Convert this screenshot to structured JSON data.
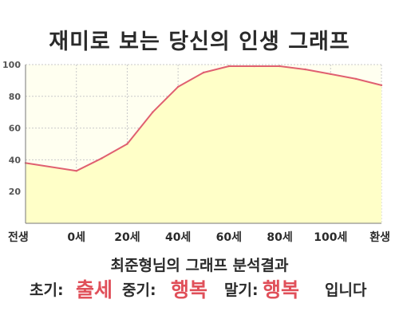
{
  "title": "재미로 보는 당신의 인생 그래프",
  "subtitle": "최준형님의 그래프 분석결과",
  "result": {
    "early_label": "초기:",
    "early_value": "출세",
    "middle_label": "중기:",
    "middle_value": "행복",
    "late_label": "말기:",
    "late_value": "행복",
    "ending": "입니다"
  },
  "colors": {
    "line": "#e06070",
    "fill": "#ffffc8",
    "plot_bg": "#fffff0",
    "accent_text": "#e0505a"
  },
  "chart_data": {
    "type": "area",
    "title": "재미로 보는 당신의 인생 그래프",
    "xlabel": "",
    "ylabel": "",
    "x_ticks": [
      "전생",
      "0세",
      "20세",
      "40세",
      "60세",
      "80세",
      "100세",
      "환생"
    ],
    "y_ticks": [
      20,
      40,
      60,
      80,
      100
    ],
    "ylim": [
      0,
      100
    ],
    "grid": true,
    "x": [
      -20,
      0,
      10,
      20,
      30,
      40,
      50,
      60,
      70,
      80,
      90,
      100,
      110,
      120
    ],
    "series": [
      {
        "values": [
          38,
          33,
          41,
          50,
          70,
          86,
          95,
          99,
          99,
          99,
          97,
          94,
          91,
          87
        ]
      }
    ]
  }
}
